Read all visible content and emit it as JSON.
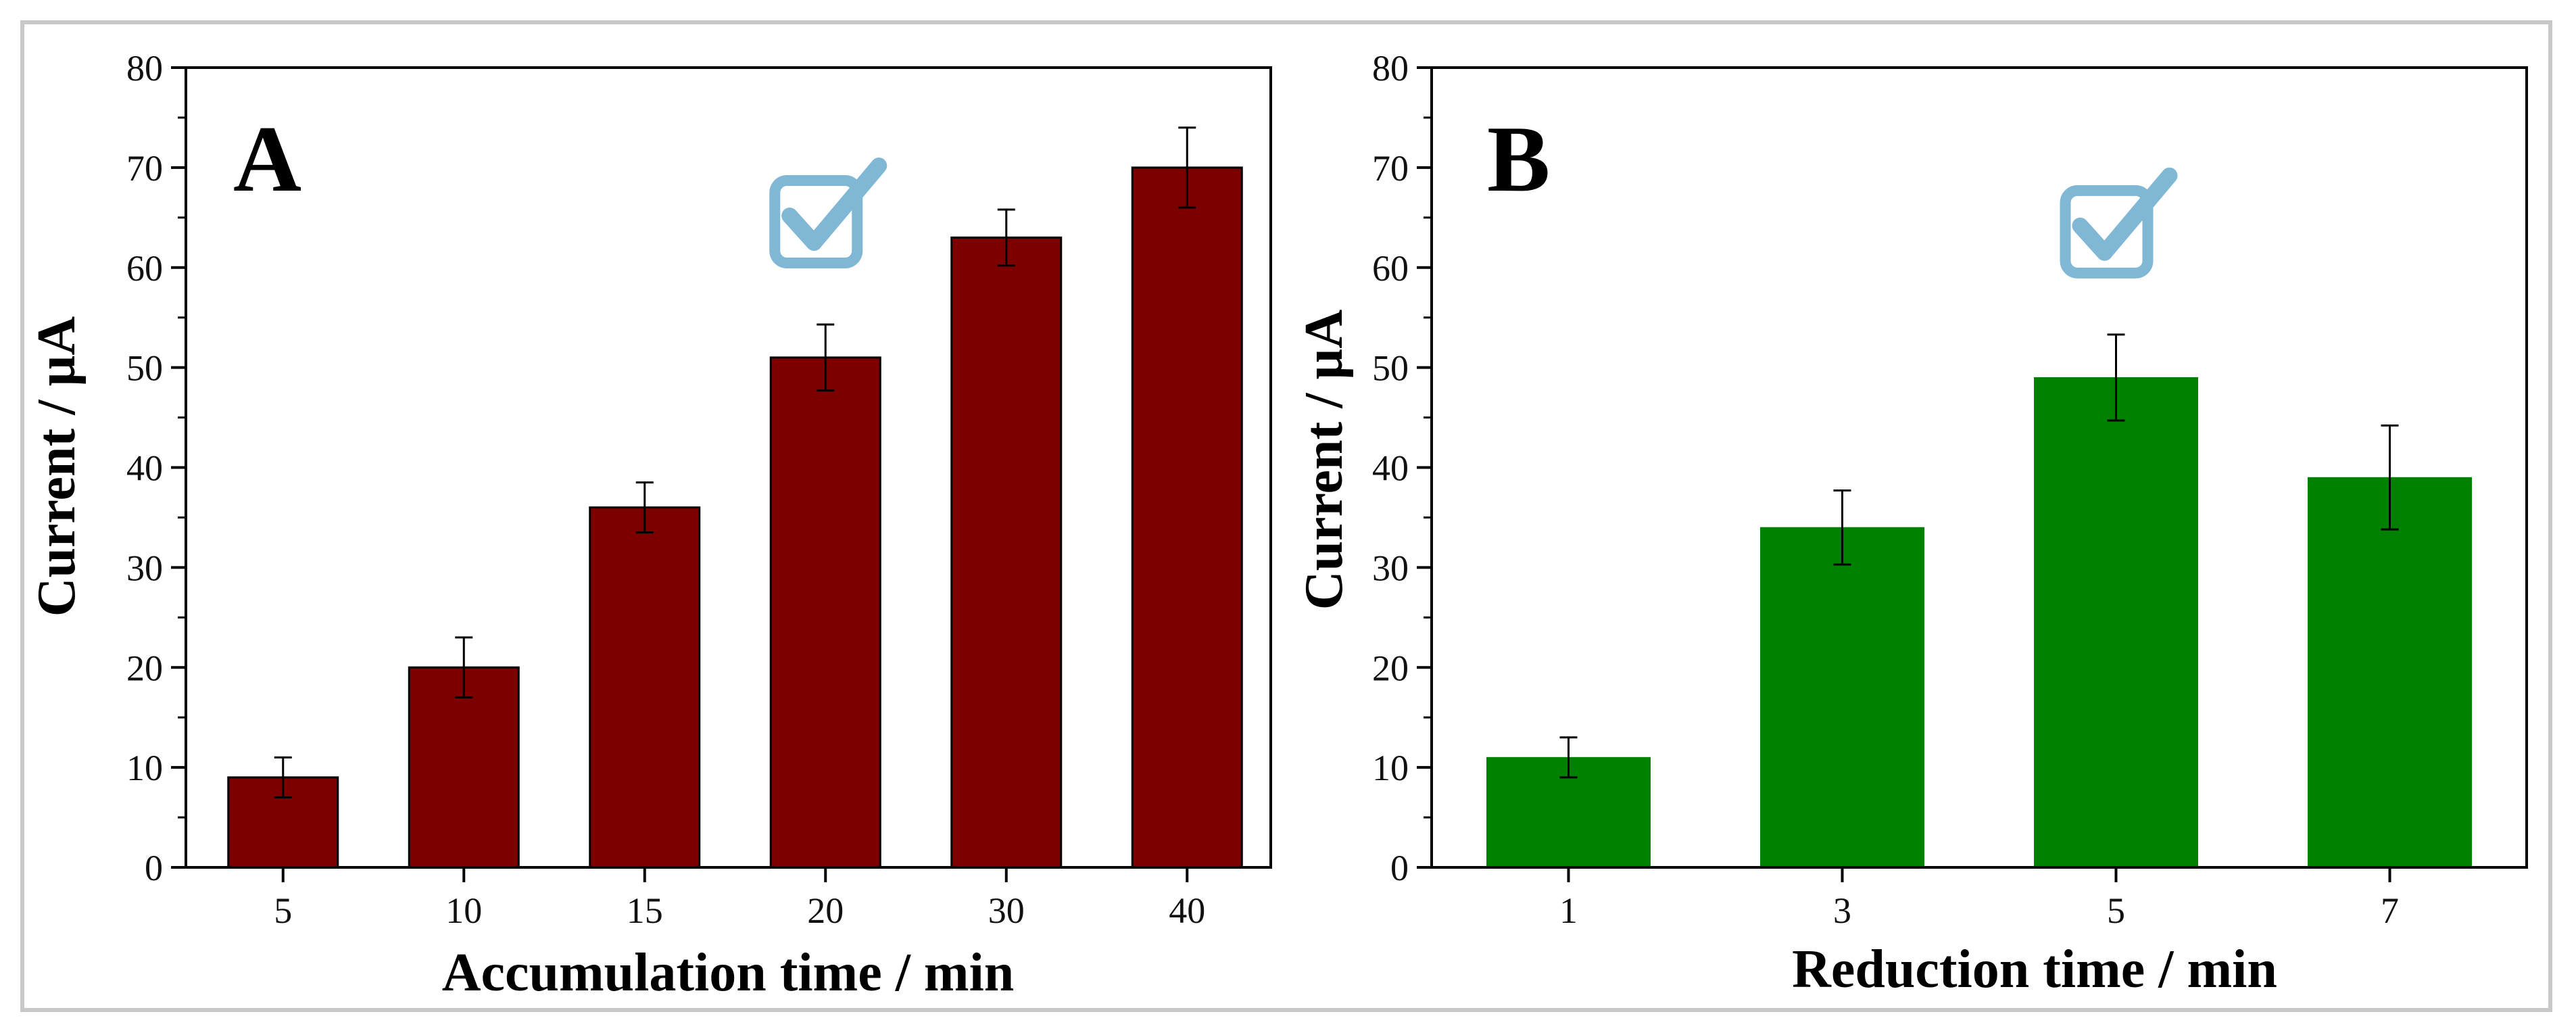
{
  "chart_data": [
    {
      "type": "bar",
      "panel_label": "A",
      "title": "",
      "xlabel": "Accumulation time / min",
      "ylabel": "Current / µA",
      "categories": [
        "5",
        "10",
        "15",
        "20",
        "30",
        "40"
      ],
      "values": [
        9,
        20,
        36,
        51,
        63,
        70
      ],
      "errors": [
        2,
        3,
        2.5,
        3.3,
        2.8,
        4
      ],
      "ylim": [
        0,
        80
      ],
      "yticks": [
        "0",
        "10",
        "20",
        "30",
        "40",
        "50",
        "60",
        "70",
        "80"
      ],
      "bar_color": "#7c0000",
      "highlighted_category": "20",
      "highlight_icon": "checkbox-checked-icon",
      "highlight_color": "#7fb7d4"
    },
    {
      "type": "bar",
      "panel_label": "B",
      "title": "",
      "xlabel": "Reduction time / min",
      "ylabel": "Current / µA",
      "categories": [
        "1",
        "3",
        "5",
        "7"
      ],
      "values": [
        11,
        34,
        49,
        39
      ],
      "errors": [
        2,
        3.7,
        4.3,
        5.2
      ],
      "ylim": [
        0,
        80
      ],
      "yticks": [
        "0",
        "10",
        "20",
        "30",
        "40",
        "50",
        "60",
        "70",
        "80"
      ],
      "bar_color": "#008000",
      "highlighted_category": "5",
      "highlight_icon": "checkbox-checked-icon",
      "highlight_color": "#7fb7d4"
    }
  ]
}
